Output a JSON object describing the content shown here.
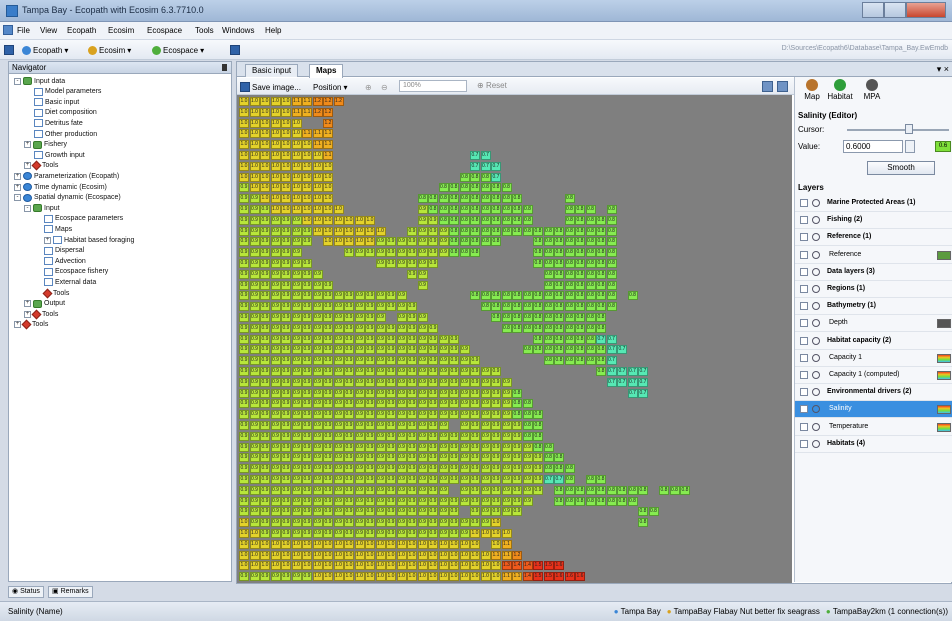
{
  "window": {
    "title": "Tampa Bay - Ecopath with Ecosim 6.3.7710.0"
  },
  "menu": {
    "items": [
      "File",
      "View",
      "Ecopath",
      "Ecosim",
      "Ecospace",
      "Tools",
      "Windows",
      "Help"
    ]
  },
  "toolbar": {
    "ecopath_label": "Ecopath",
    "ecosim_label": "Ecosim",
    "ecospace_label": "Ecospace",
    "path": "D:\\Sources\\Ecopath6\\Database\\Tampa_Bay.EwEmdb"
  },
  "navigator": {
    "title": "Navigator",
    "tree": [
      {
        "label": "Input data",
        "depth": 0,
        "icon": "folder-icon",
        "expander": "-"
      },
      {
        "label": "Model parameters",
        "depth": 2,
        "icon": "doc-icon"
      },
      {
        "label": "Basic input",
        "depth": 2,
        "icon": "doc-icon"
      },
      {
        "label": "Diet composition",
        "depth": 2,
        "icon": "doc-icon"
      },
      {
        "label": "Detritus fate",
        "depth": 2,
        "icon": "doc-icon"
      },
      {
        "label": "Other production",
        "depth": 2,
        "icon": "doc-icon"
      },
      {
        "label": "Fishery",
        "depth": 1,
        "icon": "folder-icon",
        "expander": "+"
      },
      {
        "label": "Growth input",
        "depth": 2,
        "icon": "doc-icon"
      },
      {
        "label": "Tools",
        "depth": 1,
        "icon": "tools-icon",
        "expander": "+"
      },
      {
        "label": "Parameterization (Ecopath)",
        "depth": 0,
        "icon": "globe-icon",
        "expander": "+"
      },
      {
        "label": "Time dynamic (Ecosim)",
        "depth": 0,
        "icon": "globe-icon",
        "expander": "+"
      },
      {
        "label": "Spatial dynamic (Ecospace)",
        "depth": 0,
        "icon": "globe-icon",
        "expander": "-"
      },
      {
        "label": "Input",
        "depth": 1,
        "icon": "folder-icon",
        "expander": "-"
      },
      {
        "label": "Ecospace parameters",
        "depth": 3,
        "icon": "doc-icon"
      },
      {
        "label": "Maps",
        "depth": 3,
        "icon": "doc-icon"
      },
      {
        "label": "Habitat based foraging",
        "depth": 3,
        "icon": "doc-icon",
        "expander": "+"
      },
      {
        "label": "Dispersal",
        "depth": 3,
        "icon": "doc-icon"
      },
      {
        "label": "Advection",
        "depth": 3,
        "icon": "doc-icon"
      },
      {
        "label": "Ecospace fishery",
        "depth": 3,
        "icon": "doc-icon"
      },
      {
        "label": "External data",
        "depth": 3,
        "icon": "doc-icon"
      },
      {
        "label": "Tools",
        "depth": 3,
        "icon": "tools-icon"
      },
      {
        "label": "Output",
        "depth": 1,
        "icon": "folder-icon",
        "expander": "+"
      },
      {
        "label": "Tools",
        "depth": 1,
        "icon": "tools-icon",
        "expander": "+"
      },
      {
        "label": "Tools",
        "depth": 0,
        "icon": "tools-icon",
        "expander": "+"
      }
    ]
  },
  "tabs": [
    {
      "label": "Basic input",
      "active": false
    },
    {
      "label": "Maps",
      "active": true
    }
  ],
  "map_toolbar": {
    "save_label": "Save image...",
    "position_label": "Position",
    "zoom_value": "100%",
    "reset_label": "Reset"
  },
  "right_panel": {
    "map_btn": "Map",
    "habitat_btn": "Habitat",
    "mpa_btn": "MPA",
    "editor_title": "Salinity (Editor)",
    "cursor_label": "Cursor:",
    "value_label": "Value:",
    "value": "0.6000",
    "swatch_value": "0.6",
    "smooth_label": "Smooth",
    "layers_title": "Layers",
    "layers": [
      {
        "label": "Marine Protected Areas (1)",
        "group": true
      },
      {
        "label": "Fishing (2)",
        "group": true
      },
      {
        "label": "Reference (1)",
        "group": true
      },
      {
        "label": "Reference",
        "group": false,
        "swatch": "#5b9b3f"
      },
      {
        "label": "Data layers (3)",
        "group": true
      },
      {
        "label": "Regions (1)",
        "group": true
      },
      {
        "label": "Bathymetry (1)",
        "group": true
      },
      {
        "label": "Depth",
        "group": false,
        "swatch": "#555555"
      },
      {
        "label": "Habitat capacity (2)",
        "group": true
      },
      {
        "label": "Capacity 1",
        "group": false,
        "swatch": "gradient"
      },
      {
        "label": "Capacity 1 (computed)",
        "group": false,
        "swatch": "gradient"
      },
      {
        "label": "Environmental drivers (2)",
        "group": true
      },
      {
        "label": "Salinity",
        "group": false,
        "selected": true,
        "swatch": "gradient"
      },
      {
        "label": "Temperature",
        "group": false,
        "swatch": "gradient"
      },
      {
        "label": "Habitats (4)",
        "group": true
      }
    ]
  },
  "bottom_tabs": {
    "status": "Status",
    "remarks": "Remarks"
  },
  "statusbar": {
    "left": "Salinity (Name)",
    "model": "Tampa Bay",
    "scenario": "TampaBay Flabay Nut better fix seagrass",
    "ecospace": "TampaBay2km (1 connection(s))"
  },
  "colors": {
    "water_high": "#f08a1a",
    "water_low": "#56e8b4",
    "land": "#7f7f7f",
    "selected_row": "#3a8fe0"
  },
  "map_grid": {
    "rows": [
      "1.0 1.0 1.0 1.0 1.0 1.1 1.1 1.2 1.2 1.2",
      "1.0 1.0 1.0 1.0 1.0 1.1 1.1 1.2 1.2",
      "1.0 1.0 1.0 1.0 1.0 1.0 # # 1.2",
      "1.0 1.0 1.0 1.0 1.0 1.0 1.1 1.1 1.1",
      "1.0 1.0 1.0 1.0 1.0 1.0 1.0 1.1 1.1",
      "1.0 1.0 1.0 1.0 1.0 1.0 1.0 1.0 1.1 . . . . . . . . . . . . . 0.7 0.7",
      "1.0 1.0 1.0 1.0 1.0 1.0 1.0 1.0 1.0 . . . . . . . . . . . . . 0.7 0.7 0.7",
      "1.0 1.0 1.0 1.0 1.0 1.0 1.0 1.0 1.0 . . . . . . . . . . . . 0.8 0.8 0.8 0.7",
      "0.9 1.0 1.0 1.0 1.0 1.0 1.0 1.0 1.0 . . . . . . . . . . 0.8 0.8 0.8 0.8 0.8 0.8 0.8",
      "0.9 0.9 1.0 1.0 1.0 1.0 1.0 1.0 1.0 . . . . . . . . 0.8 0.8 0.8 0.8 0.8 0.8 0.8 0.8 0.8 0.8 . . . . 0.8",
      "0.9 0.9 0.9 1.0 1.0 1.0 1.0 1.0 1.0 1.0 . . . . . . . 0.9 0.8 0.8 0.8 0.8 0.8 0.8 0.8 0.8 0.8 0.8 . . . 0.8 0.8 0.8 . 0.8",
      "0.9 0.9 0.9 0.9 0.9 0.9 1.0 1.0 1.0 1.0 1.0 1.0 1.0 . . . . 0.9 0.9 0.8 0.8 0.8 0.8 0.8 0.8 0.8 0.8 0.8 . . . 0.8 0.8 0.8 0.8 0.8",
      "0.9 0.9 0.9 0.9 0.9 0.9 0.9 1.0 1.0 1.0 1.0 1.0 1.0 1.0 . . 0.9 0.9 0.9 0.9 0.8 0.8 0.8 0.8 0.8 0.8 0.8 0.8 0.8 0.8 0.8 0.8 0.8 0.8 0.8 0.8",
      "0.9 0.9 0.9 0.9 0.9 0.9 0.9 . 1.0 1.0 1.0 1.0 1.0 0.9 0.9 0.9 0.9 0.9 0.9 0.9 0.8 0.8 0.8 0.8 0.8 . . . 0.8 0.8 0.8 0.8 0.8 0.8 0.8 0.8",
      "0.9 0.9 0.9 0.9 0.9 0.9 . . . . 0.9 0.9 0.9 0.9 0.9 0.9 0.9 0.9 0.9 0.9 0.8 0.8 0.8 . . . . . 0.8 0.8 0.8 0.8 0.8 0.8 0.8 0.8",
      "0.9 0.9 0.9 0.9 0.9 0.9 0.9 . . . . . . 0.9 0.9 0.9 0.9 0.9 0.9 . . . . . . . . . 0.8 0.8 0.8 0.8 0.8 0.8 0.8 0.8",
      "0.9 0.9 0.9 0.9 0.9 0.9 0.9 0.9 . . . . . . . . 0.9 0.9 . . . . . . . . . . . 0.8 0.8 0.8 0.8 0.8 0.8 0.8",
      "0.9 0.9 0.9 0.9 0.9 0.9 0.9 0.9 0.9 . . . . . . . . 0.9 . . . . . . . . . . . 0.8 0.8 0.8 0.8 0.8 0.8 0.8",
      "0.9 0.9 0.9 0.9 0.9 0.9 0.9 0.9 0.9 0.9 0.9 0.9 0.9 0.9 0.9 0.9 . . . . . . 0.8 0.8 0.8 0.8 0.8 0.8 0.8 0.8 0.8 0.8 0.8 0.8 0.8 0.8 . 0.8",
      "0.9 0.9 0.9 0.9 0.9 0.9 0.9 0.9 0.9 0.9 0.9 0.9 0.9 0.9 0.9 0.9 0.9 . . . . . . 0.8 0.8 0.8 0.8 0.8 0.8 0.8 0.8 0.8 0.8 0.8 0.8 0.8",
      "0.9 0.9 0.9 0.9 0.9 0.9 0.9 0.9 0.9 0.9 0.9 0.9 0.9 0.9 # 0.9 0.9 0.9 . . . . . . 0.8 0.8 0.8 0.8 0.8 0.8 0.8 0.8 0.8 0.8 0.8",
      "0.9 0.9 0.9 0.9 0.9 0.9 0.9 0.9 0.9 0.9 0.9 0.9 0.9 0.9 0.9 0.9 0.9 0.9 0.9 . . . . . . 0.8 0.8 0.8 0.8 0.8 0.8 0.8 0.8 0.8 0.8",
      "0.9 0.9 0.9 0.9 0.9 0.9 0.9 0.9 0.9 0.9 0.9 0.9 0.9 0.9 0.9 0.9 0.9 0.9 0.9 0.9 0.9 . . . . . . . 0.8 0.8 0.8 0.8 0.8 0.8 0.7 0.7",
      "0.9 0.9 0.9 0.9 0.9 0.9 0.9 0.9 0.9 0.9 0.9 0.9 0.9 0.9 0.9 0.9 0.9 0.9 0.9 0.9 0.9 0.9 . . . . . 0.8 0.8 0.8 0.8 0.8 0.8 0.8 0.8 0.7 0.7",
      "0.9 0.9 0.9 0.9 0.9 0.9 0.9 0.9 0.9 0.9 0.9 0.9 0.9 0.9 0.9 0.9 0.9 0.9 0.9 0.9 0.9 0.9 0.9 . . . . . . 0.8 0.8 0.8 0.8 0.8 0.8 0.7",
      "0.9 0.9 0.9 0.9 0.9 0.9 0.9 0.9 0.9 0.9 0.9 0.9 0.9 0.9 0.9 0.9 0.9 0.9 0.9 0.9 0.9 0.9 0.9 0.9 0.9 . . . . . . . . . 0.8 0.7 0.7 0.7 0.7",
      "0.9 0.9 0.9 0.9 0.9 0.9 0.9 0.9 0.9 0.9 0.9 0.9 0.9 0.9 0.9 0.9 0.9 0.9 0.9 0.9 0.9 0.9 0.9 0.9 0.9 0.9 . . . . . . . . . 0.7 0.7 0.7 0.7",
      "0.9 0.9 0.9 0.9 0.9 0.9 0.9 0.9 0.9 0.9 0.9 0.9 0.9 0.9 0.9 0.9 0.9 0.9 0.9 0.9 0.9 0.9 0.9 0.9 0.9 0.9 0.8 . . . . . . . . . . 0.7 0.7",
      "0.9 0.9 0.9 0.9 0.9 0.9 0.9 0.9 0.9 0.9 0.9 0.9 0.9 0.9 0.9 0.9 0.9 0.9 0.9 0.9 0.9 0.9 0.9 0.9 0.9 0.9 0.8 0.8",
      "0.9 0.9 0.9 0.9 0.9 0.9 0.9 0.9 0.9 0.9 0.9 0.9 0.9 0.9 0.9 0.9 0.9 0.9 0.9 0.9 0.9 0.9 0.9 0.9 0.9 0.9 0.8 0.8 0.8",
      "0.9 0.9 0.9 0.9 0.9 0.9 0.9 0.9 0.9 0.9 0.9 0.9 0.9 0.9 0.9 0.9 0.9 0.9 0.9 0.9 # 0.9 0.9 0.9 0.9 0.9 0.9 0.8 0.8",
      "0.9 0.9 0.9 0.9 0.9 0.9 0.9 0.9 0.9 0.9 0.9 0.9 0.9 0.9 0.9 0.9 0.9 0.9 0.9 0.9 0.9 0.9 0.9 0.9 0.9 0.9 0.9 0.8 0.8",
      "0.9 0.9 0.9 0.9 0.9 0.9 0.9 0.9 0.9 0.9 0.9 0.9 0.9 0.9 0.9 0.9 0.9 0.9 0.9 0.9 0.9 0.9 0.9 0.9 0.9 0.9 0.9 0.9 0.8 0.8",
      "0.9 0.9 0.9 0.9 0.9 0.9 0.9 0.9 0.9 0.9 0.9 0.9 0.9 0.9 0.9 0.9 0.9 0.9 0.9 0.9 0.9 0.9 0.9 0.9 0.9 0.9 0.9 0.9 0.9 0.8 0.8",
      "0.9 0.9 0.9 0.9 0.9 0.9 0.9 0.9 0.9 0.9 0.9 0.9 0.9 0.9 0.9 0.9 0.9 0.9 0.9 0.9 0.9 0.9 0.9 0.9 0.9 0.9 0.9 0.9 0.9 0.8 0.8 0.8",
      "0.9 0.9 0.9 0.9 0.9 0.9 0.9 0.9 0.9 0.9 0.9 0.9 0.9 0.9 0.9 0.9 0.9 0.9 0.9 0.9 0.9 0.9 0.9 0.9 0.9 0.9 0.9 0.9 0.9 0.7 0.7 0.8 . 0.8 0.8",
      "0.9 0.9 0.9 0.9 0.9 0.9 0.9 0.9 0.9 0.9 0.9 0.9 0.9 0.9 0.9 0.9 0.9 0.9 0.9 0.9 # 0.9 0.9 0.9 0.9 0.9 0.9 0.9 0.9 . 0.8 0.8 0.8 0.8 0.8 0.8 0.8 0.8 0.8 . 0.8 0.8 0.8",
      "0.9 0.9 0.9 0.9 0.9 0.9 0.9 0.9 0.9 0.9 0.9 0.9 0.9 0.9 0.9 0.9 0.9 0.9 0.9 0.9 0.9 0.9 0.9 0.9 0.9 0.9 0.9 0.9 . . 0.8 0.8 0.8 0.8 0.8 0.8 0.8 0.8",
      "0.9 0.9 0.9 0.9 0.9 0.9 0.9 0.9 0.9 0.9 0.9 0.9 0.9 0.9 0.9 0.9 0.9 0.9 0.9 0.9 0.9 # 0.9 0.9 0.9 0.9 0.9 . . . . . . . . . . . 0.8 0.8",
      "1.0 0.9 0.9 0.9 0.9 0.9 0.9 0.9 0.9 0.9 0.9 0.9 0.9 0.9 0.9 0.9 0.9 0.9 0.9 0.9 0.9 0.9 0.9 0.9 1.0 . . . . . . . . . . . . . 0.8",
      "1.0 1.0 0.9 0.9 0.9 0.9 0.9 0.9 0.9 0.9 0.9 0.9 0.9 0.9 0.9 0.9 0.9 0.9 0.9 0.9 0.9 0.9 1.0 1.0 1.0 1.0",
      "1.0 1.0 1.0 1.0 1.0 1.0 1.0 1.0 1.0 1.0 1.0 1.0 1.0 1.0 1.0 1.0 1.0 1.0 1.0 1.0 1.0 1.0 1.0 # 1.0 1.1",
      "1.0 1.0 1.0 1.0 1.0 1.0 1.0 1.0 1.0 1.0 1.0 1.0 1.0 1.0 1.0 1.0 1.0 1.0 1.0 1.0 1.0 1.0 1.0 1.0 1.1 1.1 1.2",
      "1.0 1.0 1.0 1.0 1.0 1.0 1.0 1.0 1.0 1.0 1.0 1.0 1.0 1.0 1.0 1.0 1.0 1.0 1.0 1.0 1.0 1.0 1.0 1.0 1.0 1.3 1.4 1.4 1.5 1.5 1.6",
      "0.9 0.9 0.9 0.9 0.9 0.9 0.9 1.0 1.0 1.0 1.0 1.0 1.0 1.0 1.0 1.0 1.0 1.0 1.0 1.0 1.0 1.0 1.0 1.0 1.0 1.1 1.1 1.4 1.5 1.5 1.6 1.6 1.6"
    ]
  }
}
